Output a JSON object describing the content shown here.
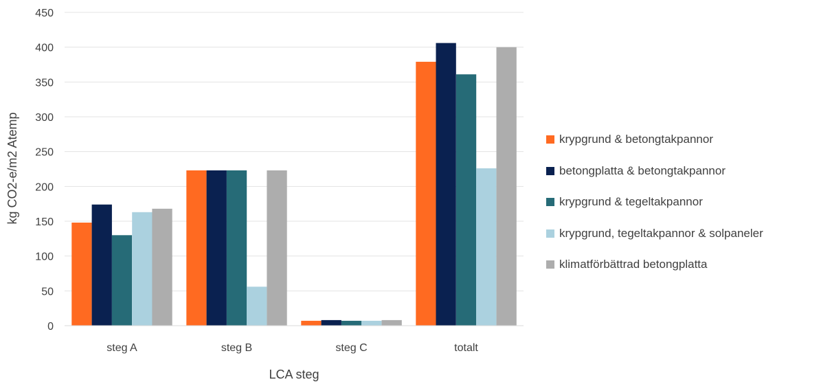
{
  "chart_data": {
    "type": "bar",
    "title": "",
    "xlabel": "LCA steg",
    "ylabel": "kg CO2-e/m2 Atemp",
    "ylim": [
      0,
      450
    ],
    "yticks": [
      0,
      50,
      100,
      150,
      200,
      250,
      300,
      350,
      400,
      450
    ],
    "grid": true,
    "legend_position": "right",
    "categories": [
      "steg A",
      "steg B",
      "steg C",
      "totalt"
    ],
    "series": [
      {
        "name": "krypgrund & betongtakpannor",
        "color": "#FF6A21",
        "values": [
          148,
          223,
          7,
          379
        ]
      },
      {
        "name": "betongplatta & betongtakpannor",
        "color": "#0A2150",
        "values": [
          174,
          223,
          8,
          406
        ]
      },
      {
        "name": "krypgrund & tegeltakpannor",
        "color": "#266B77",
        "values": [
          130,
          223,
          7,
          361
        ]
      },
      {
        "name": "krypgrund, tegeltakpannor & solpaneler",
        "color": "#ABD1DF",
        "values": [
          163,
          56,
          7,
          226
        ]
      },
      {
        "name": "klimatförbättrad betongplatta",
        "color": "#ADADAD",
        "values": [
          168,
          223,
          8,
          400
        ]
      }
    ]
  }
}
